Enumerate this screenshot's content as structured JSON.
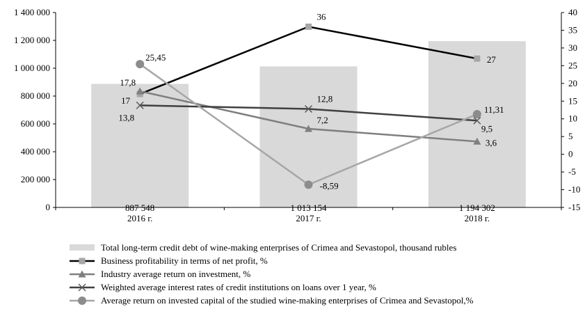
{
  "chart_data": {
    "type": "bar",
    "categories": [
      "2016 г.",
      "2017 г.",
      "2018 г."
    ],
    "left_axis": {
      "range": [
        0,
        1400000
      ],
      "ticks": [
        {
          "value": 0,
          "label": "0"
        },
        {
          "value": 200000,
          "label": "200 000"
        },
        {
          "value": 400000,
          "label": "400 000"
        },
        {
          "value": 600000,
          "label": "600 000"
        },
        {
          "value": 800000,
          "label": "800 000"
        },
        {
          "value": 1000000,
          "label": "1 000 000"
        },
        {
          "value": 1200000,
          "label": "1 200 000"
        },
        {
          "value": 1400000,
          "label": "1 400 000"
        }
      ]
    },
    "right_axis": {
      "range": [
        -15,
        40
      ],
      "ticks": [
        {
          "value": -15,
          "label": "-15"
        },
        {
          "value": -10,
          "label": "-10"
        },
        {
          "value": -5,
          "label": "-5"
        },
        {
          "value": 0,
          "label": "0"
        },
        {
          "value": 5,
          "label": "5"
        },
        {
          "value": 10,
          "label": "10"
        },
        {
          "value": 15,
          "label": "15"
        },
        {
          "value": 20,
          "label": "20"
        },
        {
          "value": 25,
          "label": "25"
        },
        {
          "value": 30,
          "label": "30"
        },
        {
          "value": 35,
          "label": "35"
        },
        {
          "value": 40,
          "label": "40"
        }
      ]
    },
    "bar_series": {
      "name": "Total long-term credit debt of wine-making enterprises of Crimea and Sevastopol, thousand rubles",
      "values": [
        887548,
        1013154,
        1194302
      ],
      "labels": [
        "887 548",
        "1 013 154",
        "1 194 302"
      ],
      "color": "#d9d9d9"
    },
    "line_series": [
      {
        "name": "Business profitability in terms of net profit, %",
        "values": [
          17,
          36,
          27
        ],
        "labels": [
          "17",
          "36",
          "27"
        ],
        "color": "#000000",
        "marker": "square",
        "marker_color": "#a6a6a6"
      },
      {
        "name": "Industry average return on investment, %",
        "values": [
          17.8,
          7.2,
          3.6
        ],
        "labels": [
          "17,8",
          "7,2",
          "3,6"
        ],
        "color": "#7f7f7f",
        "marker": "triangle",
        "marker_color": "#7f7f7f"
      },
      {
        "name": "Weighted average interest rates of credit institutions on loans over 1 year, %",
        "values": [
          13.8,
          12.8,
          9.5
        ],
        "labels": [
          "13,8",
          "12,8",
          "9,5"
        ],
        "color": "#404040",
        "marker": "x",
        "marker_color": "#595959"
      },
      {
        "name": "Average return on invested capital of the studied wine-making enterprises of Crimea and Sevastopol,%",
        "values": [
          25.45,
          -8.59,
          11.31
        ],
        "labels": [
          "25,45",
          "-8,59",
          "11,31"
        ],
        "color": "#a6a6a6",
        "marker": "circle",
        "marker_color": "#8c8c8c"
      }
    ],
    "legend_position": "bottom",
    "grid": false
  }
}
